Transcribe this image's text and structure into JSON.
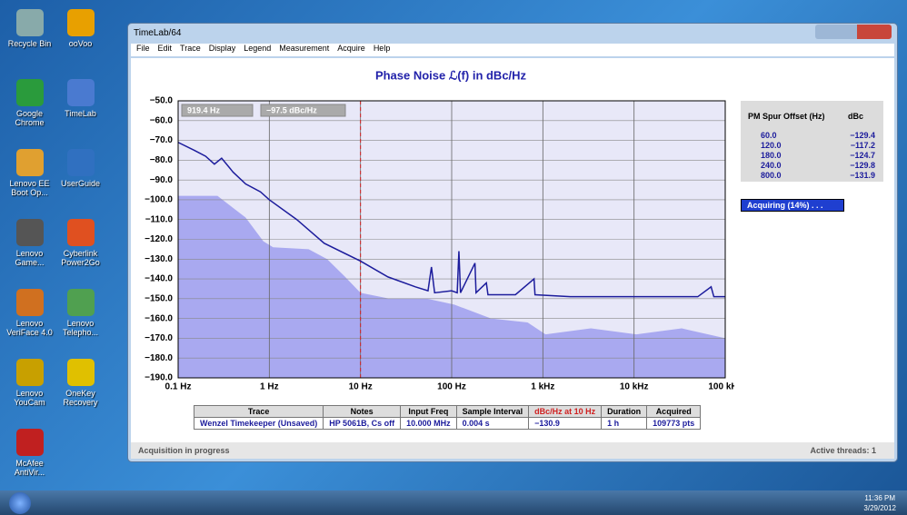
{
  "desktop_icons": [
    "Recycle Bin",
    "ooVoo",
    "Google Chrome",
    "TimeLab",
    "Lenovo EE Boot Op...",
    "UserGuide",
    "Lenovo Game...",
    "Cyberlink Power2Go",
    "Lenovo VeriFace 4.0",
    "Lenovo Telepho...",
    "Lenovo YouCam",
    "OneKey Recovery",
    "McAfee AntiVir..."
  ],
  "window": {
    "title": "TimeLab/64",
    "menu": [
      "File",
      "Edit",
      "Trace",
      "Display",
      "Legend",
      "Measurement",
      "Acquire",
      "Help"
    ]
  },
  "chart_data": {
    "type": "line",
    "title": "Phase Noise ℒ(f) in dBc/Hz",
    "xscale": "log",
    "grid": true,
    "xlim": [
      0.1,
      100000
    ],
    "ylim": [
      -190,
      -50
    ],
    "xticks": [
      {
        "value": 0.1,
        "label": "0.1 Hz"
      },
      {
        "value": 1,
        "label": "1 Hz"
      },
      {
        "value": 10,
        "label": "10 Hz"
      },
      {
        "value": 100,
        "label": "100 Hz"
      },
      {
        "value": 1000,
        "label": "1 kHz"
      },
      {
        "value": 10000,
        "label": "10 kHz"
      },
      {
        "value": 100000,
        "label": "100 kHz"
      }
    ],
    "yticks": [
      {
        "value": -50,
        "label": "−50.0"
      },
      {
        "value": -60,
        "label": "−60.0"
      },
      {
        "value": -70,
        "label": "−70.0"
      },
      {
        "value": -80,
        "label": "−80.0"
      },
      {
        "value": -90,
        "label": "−90.0"
      },
      {
        "value": -100,
        "label": "−100.0"
      },
      {
        "value": -110,
        "label": "−110.0"
      },
      {
        "value": -120,
        "label": "−120.0"
      },
      {
        "value": -130,
        "label": "−130.0"
      },
      {
        "value": -140,
        "label": "−140.0"
      },
      {
        "value": -150,
        "label": "−150.0"
      },
      {
        "value": -160,
        "label": "−160.0"
      },
      {
        "value": -170,
        "label": "−170.0"
      },
      {
        "value": -180,
        "label": "−180.0"
      },
      {
        "value": -190,
        "label": "−190.0"
      }
    ],
    "cursor_x": 10,
    "cursor_readout": [
      "919.4 Hz",
      "−97.5 dBc/Hz"
    ],
    "series": [
      {
        "fill": true,
        "color": "#a9a9f0",
        "x": [
          0.1,
          0.27,
          0.55,
          0.86,
          1.1,
          2.7,
          4.3,
          6.8,
          10,
          21,
          54,
          107,
          270,
          680,
          1070,
          3360,
          10600,
          33300,
          100000
        ],
        "values": [
          -98,
          -98,
          -109,
          -121,
          -124,
          -125,
          -130,
          -139,
          -147,
          -150,
          -150,
          -153,
          -160,
          -162,
          -168,
          -165,
          -168,
          -165,
          -170
        ]
      },
      {
        "fill": false,
        "color": "#1c1c9c",
        "x": [
          0.1,
          0.15,
          0.2,
          0.25,
          0.3,
          0.4,
          0.55,
          0.8,
          1,
          2,
          4,
          10,
          20,
          40,
          55,
          60,
          65,
          100,
          115,
          120,
          125,
          180,
          185,
          240,
          250,
          500,
          800,
          820,
          2000,
          10000,
          50000,
          70000,
          75000,
          100000
        ],
        "values": [
          -71,
          -75,
          -78,
          -82,
          -79,
          -86,
          -92,
          -96,
          -100,
          -110,
          -122,
          -131,
          -139,
          -144,
          -146,
          -134,
          -147,
          -146,
          -147,
          -126,
          -147,
          -132,
          -147,
          -142,
          -148,
          -148,
          -140,
          -148,
          -149,
          -149,
          -149,
          -144,
          -149,
          -149
        ]
      }
    ]
  },
  "spur_table": {
    "headers": [
      "PM Spur Offset (Hz)",
      "dBc"
    ],
    "rows": [
      [
        "60.0",
        "−129.4"
      ],
      [
        "120.0",
        "−117.2"
      ],
      [
        "180.0",
        "−124.7"
      ],
      [
        "240.0",
        "−129.8"
      ],
      [
        "800.0",
        "−131.9"
      ]
    ]
  },
  "acquire_status": "Acquiring (14%) . . .",
  "trace_table": {
    "headers": [
      "Trace",
      "Notes",
      "Input Freq",
      "Sample Interval",
      "dBc/Hz at 10 Hz",
      "Duration",
      "Acquired"
    ],
    "row": [
      "Wenzel Timekeeper (Unsaved)",
      "HP 5061B, Cs off",
      "10.000 MHz",
      "0.004 s",
      "−130.9",
      "1 h",
      "109773 pts"
    ]
  },
  "statusbar": [
    "Acquisition in progress",
    "Active threads: 1"
  ],
  "taskbar": {
    "time": "11:36 PM",
    "date": "3/29/2012"
  }
}
